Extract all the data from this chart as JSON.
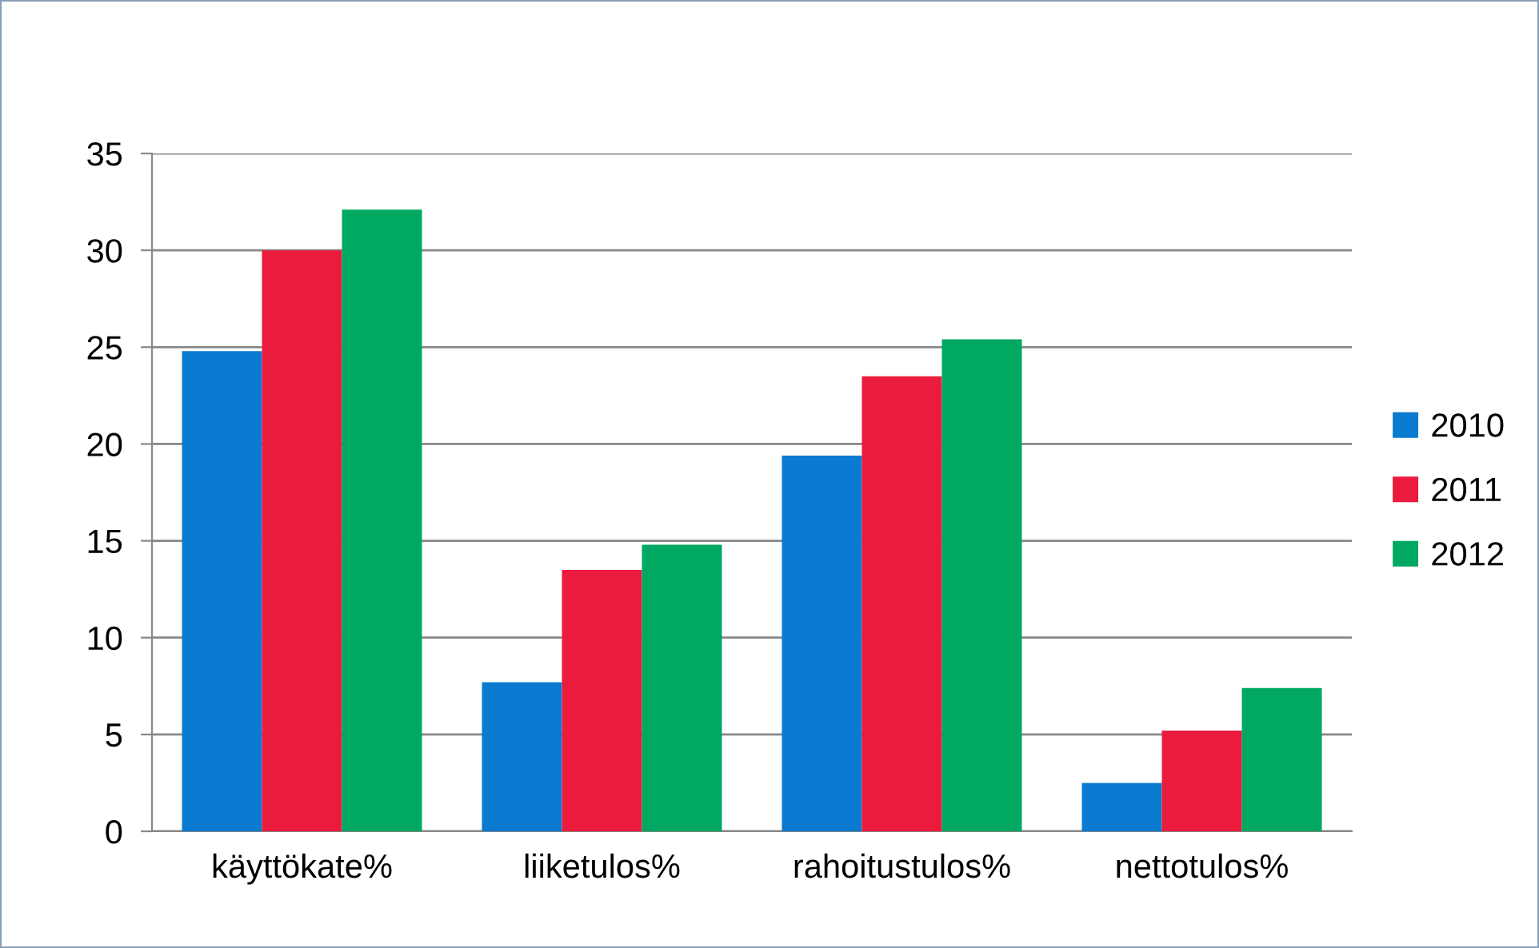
{
  "chart_data": {
    "type": "bar",
    "categories": [
      "käyttökate%",
      "liiketulos%",
      "rahoitustulos%",
      "nettotulos%"
    ],
    "series": [
      {
        "name": "2010",
        "color": "#0a7bd0",
        "values": [
          24.8,
          7.7,
          19.4,
          2.5
        ]
      },
      {
        "name": "2011",
        "color": "#ea1b3c",
        "values": [
          30.0,
          13.5,
          23.5,
          5.2
        ]
      },
      {
        "name": "2012",
        "color": "#00a862",
        "values": [
          32.1,
          14.8,
          25.4,
          7.4
        ]
      }
    ],
    "ylim": [
      0,
      35
    ],
    "yticks": [
      0,
      5,
      10,
      15,
      20,
      25,
      30,
      35
    ],
    "grid": "y",
    "legend": "right"
  }
}
